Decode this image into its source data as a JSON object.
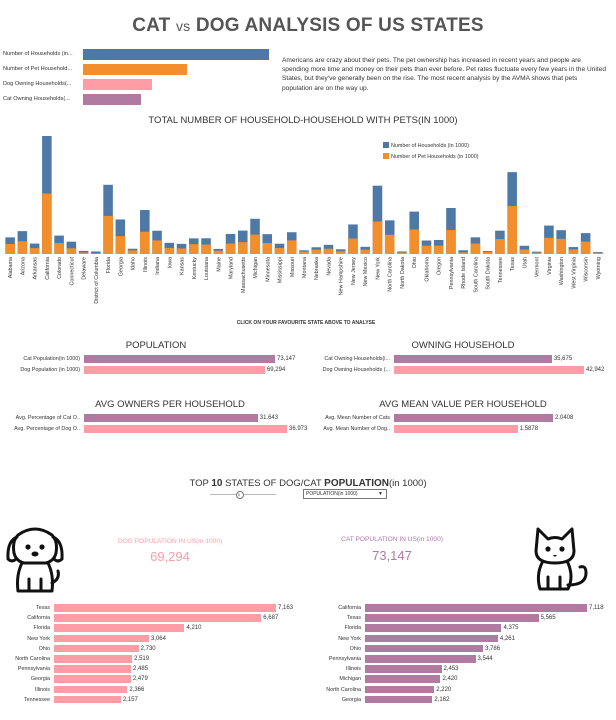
{
  "header": {
    "title_left": "CAT",
    "title_vs": "vs",
    "title_right": "DOG ANALYSIS OF US STATES"
  },
  "legend_bars": [
    {
      "label": "Number of Households (in...",
      "fraction": 1.0,
      "color": "#4e79a7"
    },
    {
      "label": "Number of Pet Household...",
      "fraction": 0.56,
      "color": "#f28e2b"
    },
    {
      "label": "Dog Owning Households(...",
      "fraction": 0.37,
      "color": "#ff9da7"
    },
    {
      "label": "Cat Owning Households(...",
      "fraction": 0.31,
      "color": "#b07aa1"
    }
  ],
  "intro_text": "Americans are crazy about their pets. The pet ownership has increased in recent years and people are spending more time and money on their pets than ever before. Pet rates fluctuate every few years in the United States, but they've generally been on the rise. The most recent analysis by the AVMA shows that pets population are on the way up.",
  "chart_data": [
    {
      "type": "bar",
      "title": "TOTAL NUMBER OF HOUSEHOLD-HOUSEHOLD WITH PETS(IN 1000)",
      "stacked": true,
      "legend_position": "top-right",
      "categories": [
        "Alabama",
        "Arizona",
        "Arkansas",
        "California",
        "Colorado",
        "Connecticut",
        "Delaware",
        "District of Columbia",
        "Florida",
        "Georgia",
        "Idaho",
        "Illinois",
        "Indiana",
        "Iowa",
        "Kansas",
        "Kentucky",
        "Louisiana",
        "Maine",
        "Maryland",
        "Massachusetts",
        "Michigan",
        "Minnesota",
        "Mississippi",
        "Missouri",
        "Montana",
        "Nebraska",
        "Nevada",
        "New Hampshire",
        "New Jersey",
        "New Mexico",
        "New York",
        "North Carolina",
        "North Dakota",
        "Ohio",
        "Oklahoma",
        "Oregon",
        "Pennsylvania",
        "Rhode Island",
        "South Carolina",
        "South Dakota",
        "Tennessee",
        "Texas",
        "Utah",
        "Vermont",
        "Virginia",
        "Washington",
        "West Virginia",
        "Wisconsin",
        "Wyoming"
      ],
      "series": [
        {
          "name": "Number of Households (in 1000)",
          "color": "#4e79a7",
          "values": [
            1828,
            2515,
            1148,
            12974,
            2024,
            1356,
            342,
            279,
            7609,
            3798,
            579,
            4836,
            2560,
            1227,
            1114,
            1719,
            1728,
            557,
            2201,
            2575,
            3872,
            2183,
            1128,
            2393,
            409,
            740,
            1006,
            520,
            3248,
            791,
            7512,
            3701,
            281,
            4661,
            1485,
            1545,
            5057,
            413,
            1833,
            322,
            2565,
            9002,
            905,
            256,
            3124,
            2620,
            763,
            2293,
            223
          ]
        },
        {
          "name": "Number of Pet Households (in 1000)",
          "color": "#f28e2b",
          "values": [
            1102,
            1401,
            647,
            6659,
            1201,
            630,
            172,
            66,
            4184,
            1966,
            405,
            2448,
            1498,
            668,
            616,
            1076,
            1038,
            360,
            1146,
            1298,
            2130,
            1215,
            660,
            1498,
            269,
            485,
            581,
            297,
            1693,
            484,
            3580,
            2110,
            176,
            2698,
            922,
            922,
            2637,
            186,
            1151,
            214,
            1640,
            5274,
            499,
            147,
            1781,
            1660,
            504,
            1363,
            153
          ]
        }
      ],
      "xlabel": "",
      "ylabel": "",
      "note": "CLICK ON YOUR FAVOURITE STATE ABOVE TO ANALYSE"
    },
    {
      "type": "bar",
      "orientation": "horizontal",
      "title": "POPULATION",
      "categories": [
        "Cat Population(in 1000)",
        "Dog Population (in 1000)"
      ],
      "values": [
        73147,
        69294
      ],
      "labels": [
        "73,147",
        "69,294"
      ],
      "colors": [
        "#b07aa1",
        "#ff9da7"
      ]
    },
    {
      "type": "bar",
      "orientation": "horizontal",
      "title": "OWNING HOUSEHOLD",
      "categories": [
        "Cat Owning Households(i...",
        "Dog Owning Households (..."
      ],
      "values": [
        35675,
        42942
      ],
      "labels": [
        "35,675",
        "42,942"
      ],
      "colors": [
        "#b07aa1",
        "#ff9da7"
      ]
    },
    {
      "type": "bar",
      "orientation": "horizontal",
      "title": "AVG OWNERS PER HOUSEHOLD",
      "categories": [
        "Avg. Percentage of Cat O..",
        "Avg. Percentage of Dog O.."
      ],
      "values": [
        31.643,
        36.973
      ],
      "labels": [
        "31.643",
        "36.973"
      ],
      "colors": [
        "#b07aa1",
        "#ff9da7"
      ]
    },
    {
      "type": "bar",
      "orientation": "horizontal",
      "title": "AVG MEAN VALUE PER HOUSEHOLD",
      "categories": [
        "Avg. Mean Number of Cats",
        "Avg. Mean Number of Dog.."
      ],
      "values": [
        2.0408,
        1.5878
      ],
      "labels": [
        "2.0408",
        "1.5878"
      ],
      "colors": [
        "#b07aa1",
        "#ff9da7"
      ]
    },
    {
      "type": "bar",
      "orientation": "horizontal",
      "title": "DOG POPULATION IN US(in 1000)",
      "kpi": "69,294",
      "categories": [
        "Texas",
        "California",
        "Florida",
        "New York",
        "Ohio",
        "North Carolina",
        "Pennsylvania",
        "Georgia",
        "Illinois",
        "Tennessee"
      ],
      "values": [
        7163,
        6687,
        4210,
        3064,
        2730,
        2519,
        2485,
        2479,
        2366,
        2157
      ],
      "labels": [
        "7,163",
        "6,687",
        "4,210",
        "3,064",
        "2,730",
        "2,519",
        "2,485",
        "2,479",
        "2,366",
        "2,157"
      ],
      "color": "#ff9da7"
    },
    {
      "type": "bar",
      "orientation": "horizontal",
      "title": "CAT POPULATION IN US(in 1000)",
      "kpi": "73,147",
      "categories": [
        "California",
        "Texas",
        "Florida",
        "New York",
        "Ohio",
        "Pennsylvania",
        "Illinois",
        "Michigan",
        "North Carolina",
        "Georgia"
      ],
      "values": [
        7118,
        5565,
        4375,
        4261,
        3786,
        3544,
        2453,
        2420,
        2220,
        2162
      ],
      "labels": [
        "7,118",
        "5,565",
        "4,375",
        "4,261",
        "3,786",
        "3,544",
        "2,453",
        "2,420",
        "2,220",
        "2,162"
      ],
      "color": "#b07aa1"
    }
  ],
  "top10": {
    "prefix": "TOP",
    "number": "10",
    "suffix": "STATES OF DOG/CAT",
    "bold_word": "POPULATION",
    "unit": "(in 1000)",
    "slider_min": "0",
    "dropdown_value": "POPULATION(in 1000)"
  },
  "icons": {
    "dog": "dog-icon",
    "cat": "cat-icon"
  }
}
